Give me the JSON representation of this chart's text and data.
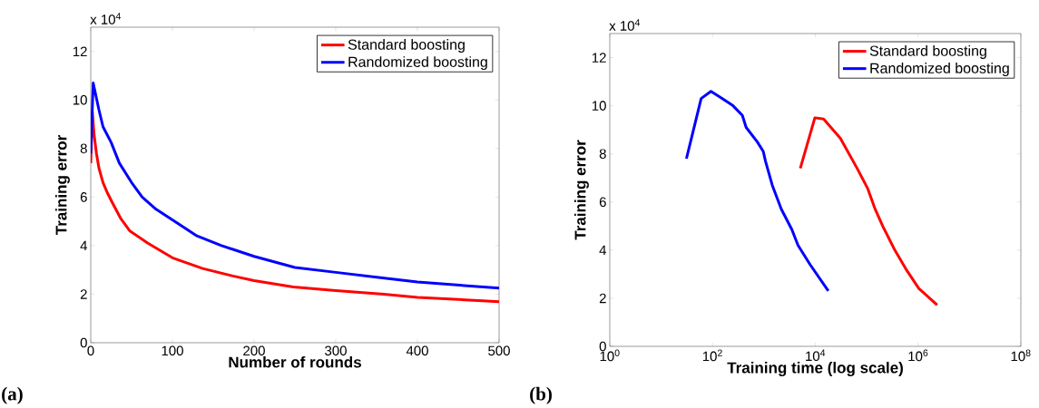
{
  "chart_data": [
    {
      "type": "line",
      "xlabel": "Number of rounds",
      "ylabel": "Training error",
      "annotations": [
        "x 10$^{4}$",
        "(a)"
      ],
      "xlim": [
        0,
        500
      ],
      "ylim": [
        0,
        13
      ],
      "xticks": [
        0,
        100,
        200,
        300,
        400,
        500
      ],
      "yticks": [
        0,
        2,
        4,
        6,
        8,
        10,
        12
      ],
      "legend": "top right",
      "line_style": "solid",
      "series": [
        {
          "name": "Standard boosting",
          "color": "#ff0000",
          "x": [
            0,
            2,
            4,
            7,
            10,
            15,
            20,
            26,
            37,
            48,
            70,
            100,
            137,
            174,
            200,
            248,
            300,
            359,
            400,
            500
          ],
          "values": [
            7.4,
            9.5,
            8.6,
            7.8,
            7.2,
            6.6,
            6.2,
            5.8,
            5.1,
            4.6,
            4.1,
            3.5,
            3.06,
            2.75,
            2.56,
            2.3,
            2.15,
            2.0,
            1.87,
            1.69
          ]
        },
        {
          "name": "Randomized boosting",
          "color": "#0000ff",
          "x": [
            0,
            3,
            10,
            15,
            25,
            35,
            50,
            63,
            80,
            100,
            130,
            160,
            200,
            250,
            300,
            350,
            400,
            500
          ],
          "values": [
            7.8,
            10.7,
            9.6,
            8.9,
            8.25,
            7.4,
            6.6,
            6.0,
            5.5,
            5.06,
            4.4,
            4.0,
            3.56,
            3.1,
            2.9,
            2.7,
            2.5,
            2.25
          ]
        }
      ]
    },
    {
      "type": "line",
      "xlabel": "Training time (log scale)",
      "ylabel": "Training error",
      "annotations": [
        "x 10$^{4}$",
        "(b)"
      ],
      "log": "x",
      "xlim": [
        1,
        100000000
      ],
      "ylim": [
        0,
        13
      ],
      "xticks": [
        {
          "value": 1,
          "label": "10$^{0}$"
        },
        {
          "value": 100,
          "label": "10$^{2}$"
        },
        {
          "value": 10000,
          "label": "10$^{4}$"
        },
        {
          "value": 1000000,
          "label": "10$^{6}$"
        },
        {
          "value": 100000000,
          "label": "10$^{8}$"
        }
      ],
      "yticks": [
        0,
        2,
        4,
        6,
        8,
        10,
        12
      ],
      "legend": "top right",
      "line_style": "solid",
      "series": [
        {
          "name": "Standard boosting",
          "color": "#ff0000",
          "x": [
            5100,
            9800,
            14500,
            30700,
            65000,
            105000,
            146000,
            205000,
            352000,
            605000,
            1040000,
            2350000
          ],
          "values": [
            7.4,
            9.5,
            9.45,
            8.65,
            7.4,
            6.55,
            5.7,
            5.0,
            4.0,
            3.15,
            2.4,
            1.72
          ]
        },
        {
          "name": "Randomized boosting",
          "color": "#0000ff",
          "x": [
            31,
            60,
            93,
            155,
            250,
            380,
            450,
            740,
            970,
            1070,
            1450,
            2180,
            3500,
            4600,
            7900,
            17900
          ],
          "values": [
            7.8,
            10.3,
            10.6,
            10.3,
            10.0,
            9.6,
            9.1,
            8.5,
            8.1,
            7.7,
            6.7,
            5.7,
            4.85,
            4.2,
            3.4,
            2.3
          ]
        }
      ]
    }
  ]
}
